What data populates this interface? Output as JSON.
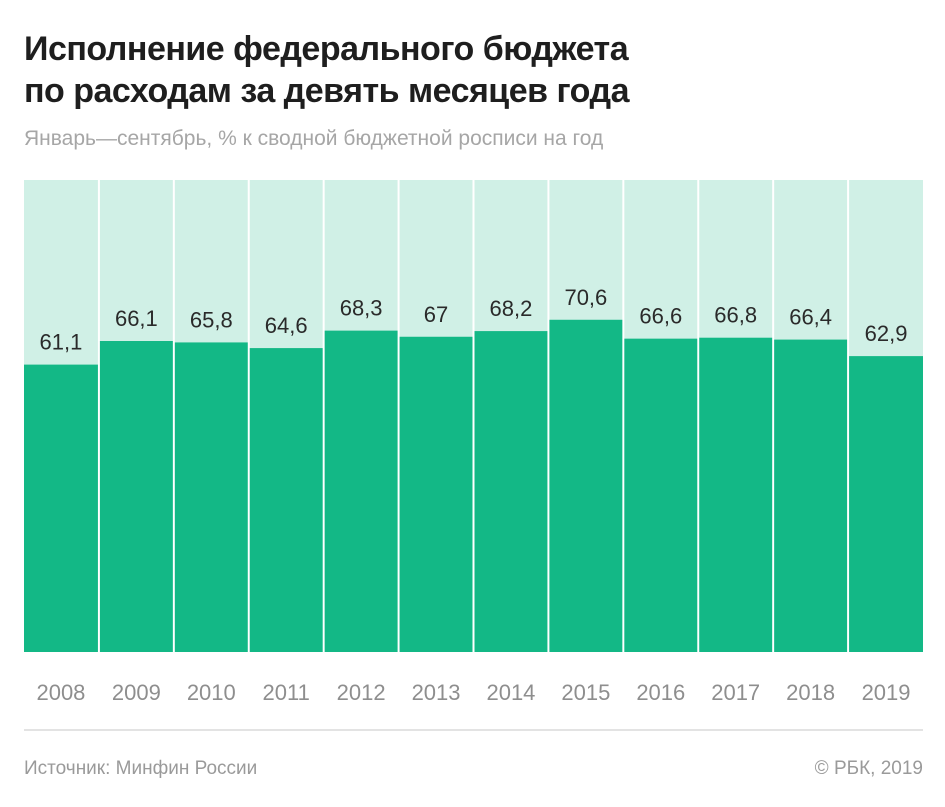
{
  "header": {
    "title_line1": "Исполнение федерального бюджета",
    "title_line2": "по расходам за девять месяцев года",
    "subtitle": "Январь—сентябрь, % к сводной бюджетной росписи на год"
  },
  "footer": {
    "source": "Источник: Минфин России",
    "credit": "© РБК, 2019"
  },
  "colors": {
    "bar": "#13b886",
    "background_bar": "#d0f0e6"
  },
  "chart_data": {
    "type": "bar",
    "title": "Исполнение федерального бюджета по расходам за девять месяцев года",
    "subtitle": "Январь—сентябрь, % к сводной бюджетной росписи на год",
    "xlabel": "",
    "ylabel": "",
    "ylim": [
      0,
      100
    ],
    "grid": false,
    "categories": [
      "2008",
      "2009",
      "2010",
      "2011",
      "2012",
      "2013",
      "2014",
      "2015",
      "2016",
      "2017",
      "2018",
      "2019"
    ],
    "values": [
      61.1,
      66.1,
      65.8,
      64.6,
      68.3,
      67,
      68.2,
      70.6,
      66.6,
      66.8,
      66.4,
      62.9
    ],
    "value_labels": [
      "61,1",
      "66,1",
      "65,8",
      "64,6",
      "68,3",
      "67",
      "68,2",
      "70,6",
      "66,6",
      "66,8",
      "66,4",
      "62,9"
    ]
  }
}
